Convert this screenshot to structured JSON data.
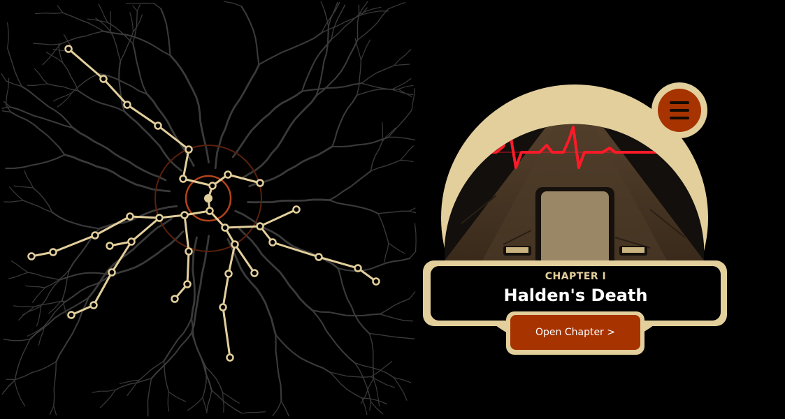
{
  "colors": {
    "background": "#000000",
    "path": "#e3cf9c",
    "faint_branches": "#3d3d3d",
    "accent": "#a63300",
    "rings": "#b3421a",
    "heartbeat": "#ff1a28",
    "panel_frame": "#e3cf9c"
  },
  "chapter": {
    "label": "CHAPTER I",
    "title": "Halden's Death",
    "open_label": "Open Chapter >"
  },
  "menu": {
    "icon": "hamburger-menu-icon"
  }
}
